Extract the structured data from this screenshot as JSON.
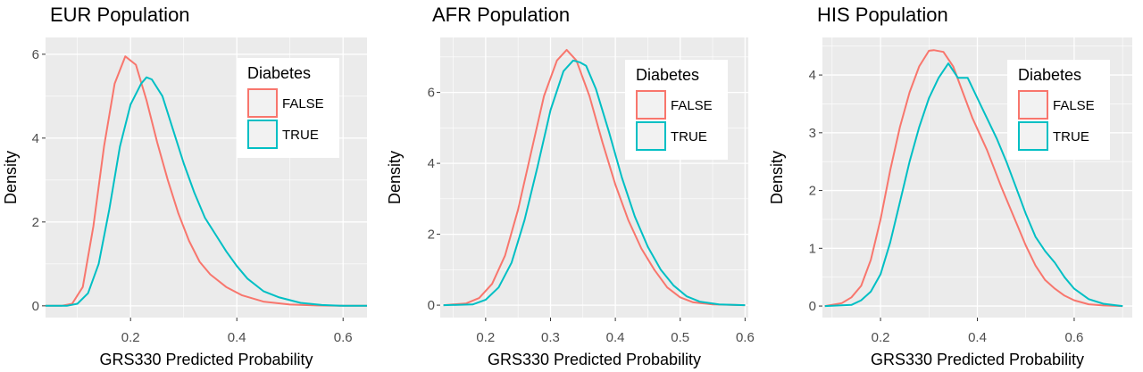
{
  "colors": {
    "false": "#F8766D",
    "true": "#00BFC4",
    "panel": "#EBEBEB",
    "grid": "#FFFFFF"
  },
  "legend": {
    "title": "Diabetes",
    "labels": [
      "FALSE",
      "TRUE"
    ]
  },
  "chart_data": [
    {
      "type": "line",
      "title": "EUR Population",
      "xlabel": "GRS330 Predicted Probability",
      "ylabel": "Density",
      "xlim": [
        0.04,
        0.645
      ],
      "ylim": [
        -0.28,
        6.4
      ],
      "xticks": [
        0.2,
        0.4,
        0.6
      ],
      "xtick_labels": [
        "0.2",
        "0.4",
        "0.6"
      ],
      "yticks": [
        0,
        2,
        4,
        6
      ],
      "ytick_labels": [
        "0",
        "2",
        "4",
        "6"
      ],
      "grid": true,
      "legend_position": "top-right",
      "series": [
        {
          "name": "FALSE",
          "x": [
            0.04,
            0.07,
            0.09,
            0.11,
            0.13,
            0.15,
            0.17,
            0.19,
            0.21,
            0.23,
            0.25,
            0.27,
            0.29,
            0.31,
            0.33,
            0.35,
            0.38,
            0.41,
            0.45,
            0.5,
            0.55,
            0.6,
            0.645
          ],
          "y": [
            0,
            0,
            0.05,
            0.45,
            1.9,
            3.8,
            5.3,
            5.95,
            5.75,
            4.9,
            3.9,
            3.0,
            2.2,
            1.55,
            1.05,
            0.75,
            0.45,
            0.25,
            0.1,
            0.03,
            0.01,
            0,
            0
          ]
        },
        {
          "name": "TRUE",
          "x": [
            0.04,
            0.08,
            0.1,
            0.12,
            0.14,
            0.16,
            0.18,
            0.2,
            0.22,
            0.23,
            0.24,
            0.26,
            0.28,
            0.3,
            0.32,
            0.34,
            0.36,
            0.38,
            0.4,
            0.42,
            0.45,
            0.48,
            0.52,
            0.56,
            0.6,
            0.645
          ],
          "y": [
            0,
            0,
            0.05,
            0.3,
            1.0,
            2.3,
            3.8,
            4.8,
            5.3,
            5.45,
            5.4,
            5.0,
            4.2,
            3.4,
            2.7,
            2.1,
            1.7,
            1.3,
            0.95,
            0.65,
            0.35,
            0.2,
            0.07,
            0.02,
            0,
            0
          ]
        }
      ]
    },
    {
      "type": "line",
      "title": "AFR Population",
      "xlabel": "GRS330 Predicted Probability",
      "ylabel": "Density",
      "xlim": [
        0.13,
        0.605
      ],
      "ylim": [
        -0.35,
        7.55
      ],
      "xticks": [
        0.2,
        0.3,
        0.4,
        0.5,
        0.6
      ],
      "xtick_labels": [
        "0.2",
        "0.3",
        "0.4",
        "0.5",
        "0.6"
      ],
      "yticks": [
        0,
        2,
        4,
        6
      ],
      "ytick_labels": [
        "0",
        "2",
        "4",
        "6"
      ],
      "grid": true,
      "legend_position": "top-right",
      "series": [
        {
          "name": "FALSE",
          "x": [
            0.135,
            0.17,
            0.19,
            0.21,
            0.23,
            0.25,
            0.27,
            0.29,
            0.31,
            0.325,
            0.34,
            0.36,
            0.38,
            0.4,
            0.42,
            0.44,
            0.46,
            0.48,
            0.5,
            0.52,
            0.55,
            0.6
          ],
          "y": [
            0,
            0.05,
            0.2,
            0.6,
            1.4,
            2.7,
            4.3,
            5.9,
            6.9,
            7.2,
            6.9,
            5.9,
            4.6,
            3.4,
            2.4,
            1.6,
            1.0,
            0.5,
            0.22,
            0.08,
            0.02,
            0
          ]
        },
        {
          "name": "TRUE",
          "x": [
            0.135,
            0.18,
            0.2,
            0.22,
            0.24,
            0.26,
            0.28,
            0.3,
            0.32,
            0.335,
            0.345,
            0.355,
            0.37,
            0.39,
            0.41,
            0.43,
            0.45,
            0.47,
            0.49,
            0.51,
            0.53,
            0.56,
            0.6
          ],
          "y": [
            0,
            0.02,
            0.15,
            0.5,
            1.2,
            2.4,
            3.9,
            5.5,
            6.6,
            6.9,
            6.85,
            6.75,
            6.1,
            4.9,
            3.6,
            2.5,
            1.65,
            1.0,
            0.55,
            0.25,
            0.1,
            0.02,
            0
          ]
        }
      ]
    },
    {
      "type": "line",
      "title": "HIS Population",
      "xlabel": "GRS330 Predicted Probability",
      "ylabel": "Density",
      "xlim": [
        0.08,
        0.72
      ],
      "ylim": [
        -0.2,
        4.65
      ],
      "xticks": [
        0.2,
        0.4,
        0.6
      ],
      "xtick_labels": [
        "0.2",
        "0.4",
        "0.6"
      ],
      "yticks": [
        0,
        1,
        2,
        3,
        4
      ],
      "ytick_labels": [
        "0",
        "1",
        "2",
        "3",
        "4"
      ],
      "grid": true,
      "legend_position": "top-right",
      "series": [
        {
          "name": "FALSE",
          "x": [
            0.085,
            0.12,
            0.14,
            0.16,
            0.18,
            0.2,
            0.22,
            0.24,
            0.26,
            0.28,
            0.3,
            0.31,
            0.33,
            0.35,
            0.37,
            0.39,
            0.42,
            0.45,
            0.48,
            0.5,
            0.52,
            0.54,
            0.56,
            0.58,
            0.6,
            0.63,
            0.66,
            0.7
          ],
          "y": [
            0,
            0.05,
            0.15,
            0.35,
            0.8,
            1.5,
            2.35,
            3.1,
            3.7,
            4.15,
            4.42,
            4.43,
            4.4,
            4.15,
            3.7,
            3.25,
            2.7,
            2.05,
            1.45,
            1.05,
            0.7,
            0.45,
            0.3,
            0.18,
            0.1,
            0.03,
            0.01,
            0
          ]
        },
        {
          "name": "TRUE",
          "x": [
            0.085,
            0.14,
            0.16,
            0.18,
            0.2,
            0.22,
            0.24,
            0.26,
            0.28,
            0.3,
            0.32,
            0.34,
            0.36,
            0.38,
            0.4,
            0.42,
            0.44,
            0.46,
            0.48,
            0.5,
            0.52,
            0.54,
            0.56,
            0.58,
            0.6,
            0.63,
            0.66,
            0.7
          ],
          "y": [
            0,
            0.02,
            0.1,
            0.25,
            0.55,
            1.1,
            1.8,
            2.5,
            3.1,
            3.6,
            3.95,
            4.2,
            3.95,
            3.95,
            3.6,
            3.25,
            2.9,
            2.5,
            2.05,
            1.6,
            1.2,
            0.95,
            0.75,
            0.5,
            0.3,
            0.12,
            0.04,
            0
          ]
        }
      ]
    }
  ]
}
